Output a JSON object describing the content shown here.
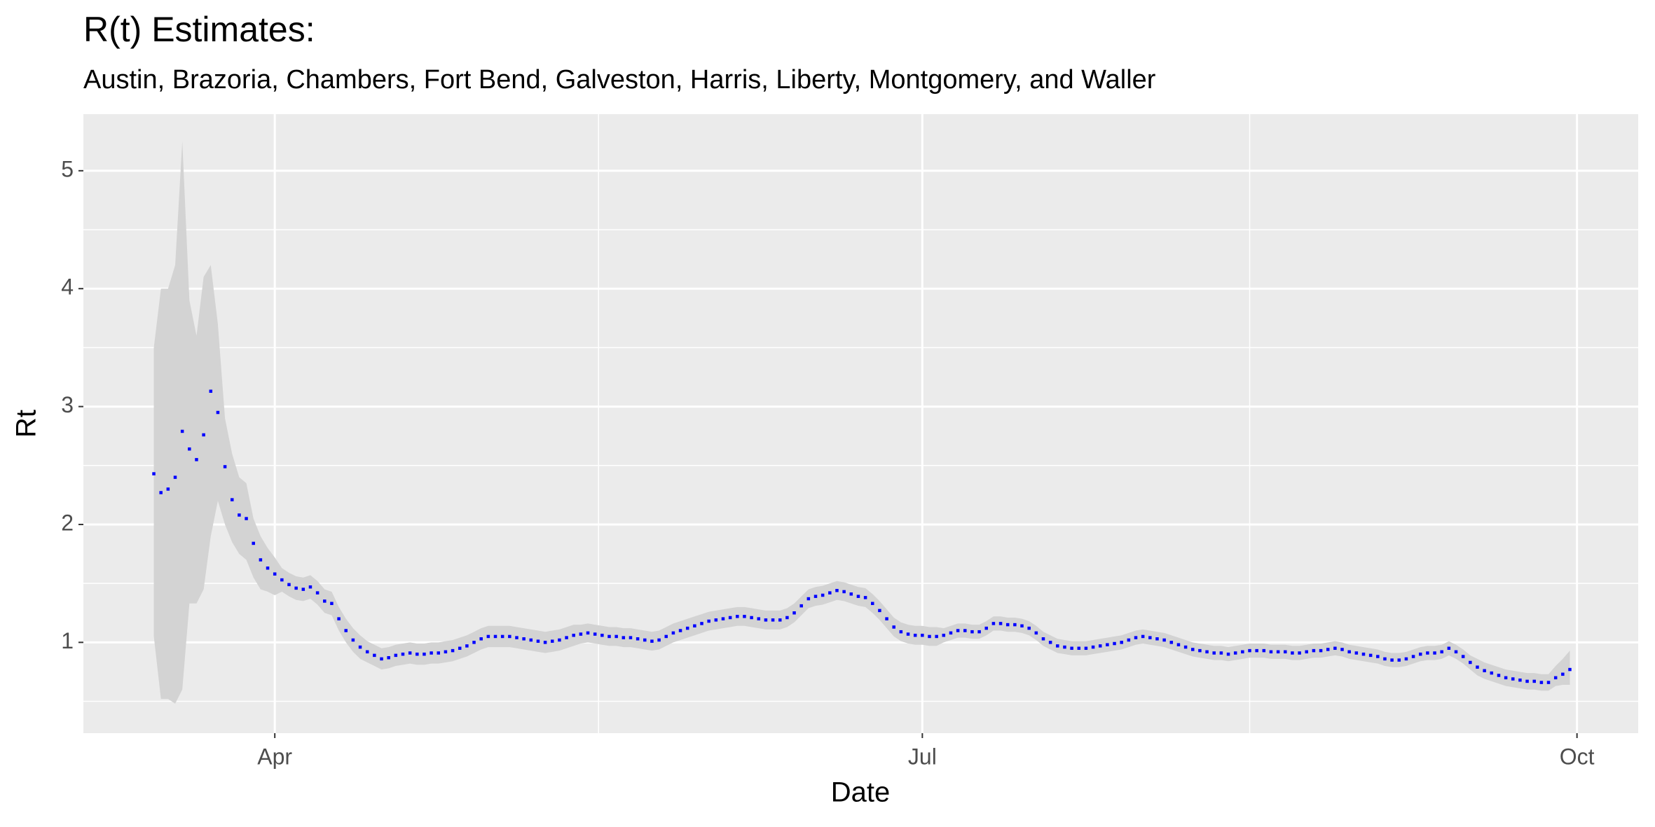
{
  "chart_data": {
    "type": "line",
    "title": "R(t) Estimates:",
    "subtitle": "Austin, Brazoria, Chambers, Fort Bend, Galveston, Harris, Liberty, Montgomery, and Waller",
    "x_label": "Date",
    "y_label": "Rt",
    "color": "#0000ff",
    "band_color": "#d3d3d3",
    "grid": true,
    "xlim": [
      -9.9,
      208.6
    ],
    "ylim": [
      0.23,
      5.48
    ],
    "xticks": [
      {
        "value": 17,
        "label": "Apr"
      },
      {
        "value": 108,
        "label": "Jul"
      },
      {
        "value": 200,
        "label": "Oct"
      }
    ],
    "xminor": [
      62.5,
      154
    ],
    "yticks": [
      1,
      2,
      3,
      4,
      5
    ],
    "yminor": [
      0.5,
      1.5,
      2.5,
      3.5,
      4.5
    ],
    "x": [
      0,
      1,
      2,
      3,
      4,
      5,
      6,
      7,
      8,
      9,
      10,
      11,
      12,
      13,
      14,
      15,
      16,
      17,
      18,
      19,
      20,
      21,
      22,
      23,
      24,
      25,
      26,
      27,
      28,
      29,
      30,
      31,
      32,
      33,
      34,
      35,
      36,
      37,
      38,
      39,
      40,
      41,
      42,
      43,
      44,
      45,
      46,
      47,
      48,
      49,
      50,
      51,
      52,
      53,
      54,
      55,
      56,
      57,
      58,
      59,
      60,
      61,
      62,
      63,
      64,
      65,
      66,
      67,
      68,
      69,
      70,
      71,
      72,
      73,
      74,
      75,
      76,
      77,
      78,
      79,
      80,
      81,
      82,
      83,
      84,
      85,
      86,
      87,
      88,
      89,
      90,
      91,
      92,
      93,
      94,
      95,
      96,
      97,
      98,
      99,
      100,
      101,
      102,
      103,
      104,
      105,
      106,
      107,
      108,
      109,
      110,
      111,
      112,
      113,
      114,
      115,
      116,
      117,
      118,
      119,
      120,
      121,
      122,
      123,
      124,
      125,
      126,
      127,
      128,
      129,
      130,
      131,
      132,
      133,
      134,
      135,
      136,
      137,
      138,
      139,
      140,
      141,
      142,
      143,
      144,
      145,
      146,
      147,
      148,
      149,
      150,
      151,
      152,
      153,
      154,
      155,
      156,
      157,
      158,
      159,
      160,
      161,
      162,
      163,
      164,
      165,
      166,
      167,
      168,
      169,
      170,
      171,
      172,
      173,
      174,
      175,
      176,
      177,
      178,
      179,
      180,
      181,
      182,
      183,
      184,
      185,
      186,
      187,
      188,
      189,
      190,
      191,
      192,
      193,
      194,
      195,
      196,
      197,
      198,
      199
    ],
    "values": [
      2.43,
      2.27,
      2.3,
      2.4,
      2.79,
      2.64,
      2.55,
      2.76,
      3.13,
      2.95,
      2.49,
      2.21,
      2.08,
      2.05,
      1.84,
      1.7,
      1.63,
      1.58,
      1.53,
      1.49,
      1.46,
      1.45,
      1.47,
      1.42,
      1.35,
      1.33,
      1.2,
      1.1,
      1.02,
      0.96,
      0.92,
      0.89,
      0.86,
      0.87,
      0.89,
      0.9,
      0.91,
      0.9,
      0.9,
      0.91,
      0.91,
      0.92,
      0.93,
      0.95,
      0.97,
      1.0,
      1.03,
      1.05,
      1.05,
      1.05,
      1.05,
      1.04,
      1.03,
      1.02,
      1.01,
      1.0,
      1.01,
      1.02,
      1.04,
      1.06,
      1.07,
      1.08,
      1.07,
      1.06,
      1.05,
      1.05,
      1.04,
      1.04,
      1.03,
      1.02,
      1.01,
      1.02,
      1.05,
      1.08,
      1.1,
      1.12,
      1.14,
      1.16,
      1.18,
      1.19,
      1.2,
      1.21,
      1.22,
      1.22,
      1.21,
      1.2,
      1.19,
      1.19,
      1.19,
      1.21,
      1.25,
      1.31,
      1.37,
      1.39,
      1.4,
      1.42,
      1.44,
      1.43,
      1.41,
      1.39,
      1.38,
      1.33,
      1.27,
      1.2,
      1.13,
      1.09,
      1.07,
      1.06,
      1.06,
      1.05,
      1.05,
      1.06,
      1.08,
      1.1,
      1.1,
      1.09,
      1.09,
      1.12,
      1.16,
      1.16,
      1.15,
      1.15,
      1.14,
      1.12,
      1.08,
      1.03,
      1.0,
      0.97,
      0.96,
      0.95,
      0.95,
      0.95,
      0.96,
      0.97,
      0.98,
      0.99,
      1.0,
      1.02,
      1.04,
      1.05,
      1.04,
      1.03,
      1.02,
      1.0,
      0.98,
      0.96,
      0.94,
      0.93,
      0.92,
      0.91,
      0.91,
      0.9,
      0.91,
      0.92,
      0.93,
      0.93,
      0.93,
      0.92,
      0.92,
      0.92,
      0.91,
      0.91,
      0.92,
      0.93,
      0.93,
      0.94,
      0.95,
      0.94,
      0.92,
      0.91,
      0.9,
      0.89,
      0.88,
      0.86,
      0.85,
      0.85,
      0.86,
      0.88,
      0.9,
      0.91,
      0.91,
      0.92,
      0.95,
      0.92,
      0.88,
      0.83,
      0.79,
      0.76,
      0.74,
      0.72,
      0.7,
      0.69,
      0.68,
      0.67,
      0.67,
      0.66,
      0.66,
      0.7,
      0.73,
      0.77
    ],
    "lower": [
      1.05,
      0.52,
      0.52,
      0.48,
      0.6,
      1.33,
      1.33,
      1.45,
      1.9,
      2.2,
      2.0,
      1.85,
      1.75,
      1.7,
      1.55,
      1.45,
      1.43,
      1.4,
      1.43,
      1.39,
      1.36,
      1.35,
      1.37,
      1.32,
      1.25,
      1.23,
      1.1,
      1.0,
      0.92,
      0.86,
      0.83,
      0.8,
      0.77,
      0.78,
      0.8,
      0.81,
      0.82,
      0.81,
      0.81,
      0.82,
      0.82,
      0.83,
      0.84,
      0.86,
      0.88,
      0.91,
      0.94,
      0.96,
      0.96,
      0.96,
      0.96,
      0.95,
      0.94,
      0.93,
      0.92,
      0.91,
      0.92,
      0.93,
      0.95,
      0.97,
      0.99,
      1.0,
      0.99,
      0.98,
      0.97,
      0.97,
      0.96,
      0.96,
      0.95,
      0.94,
      0.93,
      0.94,
      0.97,
      1.0,
      1.02,
      1.04,
      1.06,
      1.08,
      1.1,
      1.11,
      1.12,
      1.13,
      1.14,
      1.14,
      1.13,
      1.12,
      1.11,
      1.11,
      1.11,
      1.13,
      1.17,
      1.23,
      1.29,
      1.31,
      1.32,
      1.34,
      1.36,
      1.35,
      1.33,
      1.31,
      1.3,
      1.25,
      1.19,
      1.12,
      1.05,
      1.01,
      0.99,
      0.98,
      0.98,
      0.97,
      0.97,
      1.0,
      1.02,
      1.04,
      1.04,
      1.03,
      1.03,
      1.06,
      1.1,
      1.1,
      1.09,
      1.09,
      1.08,
      1.06,
      1.02,
      0.97,
      0.94,
      0.91,
      0.9,
      0.89,
      0.89,
      0.89,
      0.9,
      0.91,
      0.92,
      0.93,
      0.94,
      0.96,
      0.98,
      0.99,
      0.98,
      0.97,
      0.96,
      0.94,
      0.92,
      0.9,
      0.88,
      0.87,
      0.86,
      0.85,
      0.85,
      0.84,
      0.85,
      0.86,
      0.87,
      0.87,
      0.87,
      0.86,
      0.86,
      0.86,
      0.85,
      0.85,
      0.86,
      0.87,
      0.87,
      0.88,
      0.89,
      0.88,
      0.86,
      0.85,
      0.84,
      0.83,
      0.82,
      0.8,
      0.79,
      0.79,
      0.8,
      0.82,
      0.84,
      0.85,
      0.85,
      0.86,
      0.89,
      0.86,
      0.82,
      0.77,
      0.72,
      0.69,
      0.67,
      0.65,
      0.63,
      0.62,
      0.61,
      0.6,
      0.6,
      0.59,
      0.59,
      0.63,
      0.64,
      0.64
    ],
    "upper": [
      3.5,
      4.0,
      4.0,
      4.2,
      5.25,
      3.9,
      3.6,
      4.1,
      4.2,
      3.7,
      2.9,
      2.6,
      2.4,
      2.35,
      2.05,
      1.9,
      1.8,
      1.72,
      1.63,
      1.59,
      1.56,
      1.55,
      1.57,
      1.52,
      1.45,
      1.43,
      1.3,
      1.2,
      1.12,
      1.06,
      1.01,
      0.98,
      0.95,
      0.96,
      0.98,
      0.99,
      1.0,
      0.99,
      0.99,
      1.0,
      1.0,
      1.01,
      1.02,
      1.04,
      1.06,
      1.09,
      1.12,
      1.14,
      1.14,
      1.14,
      1.14,
      1.13,
      1.12,
      1.11,
      1.1,
      1.09,
      1.1,
      1.11,
      1.13,
      1.15,
      1.15,
      1.16,
      1.15,
      1.14,
      1.13,
      1.13,
      1.12,
      1.12,
      1.11,
      1.1,
      1.09,
      1.1,
      1.13,
      1.16,
      1.18,
      1.2,
      1.22,
      1.24,
      1.26,
      1.27,
      1.28,
      1.29,
      1.3,
      1.3,
      1.29,
      1.28,
      1.27,
      1.27,
      1.27,
      1.29,
      1.33,
      1.39,
      1.45,
      1.47,
      1.48,
      1.5,
      1.52,
      1.51,
      1.49,
      1.47,
      1.46,
      1.41,
      1.35,
      1.28,
      1.21,
      1.17,
      1.15,
      1.14,
      1.14,
      1.13,
      1.13,
      1.12,
      1.14,
      1.16,
      1.16,
      1.15,
      1.15,
      1.18,
      1.22,
      1.22,
      1.21,
      1.21,
      1.2,
      1.18,
      1.14,
      1.09,
      1.06,
      1.03,
      1.02,
      1.01,
      1.01,
      1.01,
      1.02,
      1.03,
      1.04,
      1.05,
      1.06,
      1.08,
      1.1,
      1.11,
      1.1,
      1.09,
      1.08,
      1.06,
      1.04,
      1.02,
      1.0,
      0.99,
      0.98,
      0.97,
      0.97,
      0.96,
      0.97,
      0.98,
      0.99,
      0.99,
      0.99,
      0.98,
      0.98,
      0.98,
      0.97,
      0.97,
      0.98,
      0.99,
      0.99,
      1.0,
      1.01,
      1.0,
      0.98,
      0.97,
      0.96,
      0.95,
      0.94,
      0.92,
      0.91,
      0.91,
      0.92,
      0.94,
      0.96,
      0.97,
      0.97,
      0.98,
      1.01,
      0.98,
      0.94,
      0.89,
      0.86,
      0.83,
      0.81,
      0.79,
      0.77,
      0.76,
      0.75,
      0.74,
      0.74,
      0.73,
      0.73,
      0.8,
      0.86,
      0.93
    ]
  }
}
